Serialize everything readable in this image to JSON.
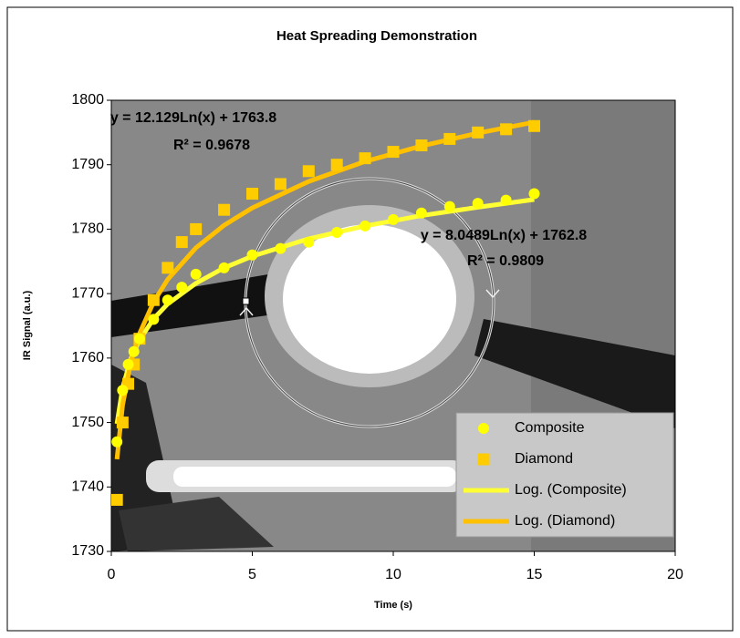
{
  "chart_data": {
    "type": "scatter",
    "title": "Heat Spreading Demonstration",
    "x_label": "Time (s)",
    "y_label": "IR Signal (a.u.)",
    "xlim": [
      0,
      20
    ],
    "xticks": [
      0,
      5,
      10,
      15,
      20
    ],
    "ylim": [
      1730,
      1800
    ],
    "yticks": [
      1730,
      1740,
      1750,
      1760,
      1770,
      1780,
      1790,
      1800
    ],
    "legend": "lower right",
    "annotations": [
      "y = 12.129Ln(x) + 1763.8",
      "R² = 0.9678",
      "y = 8.0489Ln(x) + 1762.8",
      "R² = 0.9809"
    ],
    "series": [
      {
        "name": "Composite",
        "color": "#ffff00",
        "marker": "circle",
        "x": [
          0.2,
          0.4,
          0.6,
          0.8,
          1,
          1.5,
          2,
          2.5,
          3,
          4,
          5,
          6,
          7,
          8,
          9,
          10,
          11,
          12,
          13,
          14,
          15
        ],
        "values": [
          1747,
          1755,
          1759,
          1761,
          1763,
          1766,
          1769,
          1771,
          1773,
          1774,
          1776,
          1777,
          1778,
          1779.5,
          1780.5,
          1781.5,
          1782.5,
          1783.5,
          1784,
          1784.5,
          1785.5
        ]
      },
      {
        "name": "Diamond",
        "color": "#ffcc00",
        "marker": "square",
        "x": [
          0.2,
          0.4,
          0.6,
          0.8,
          1,
          1.5,
          2,
          2.5,
          3,
          4,
          5,
          6,
          7,
          8,
          9,
          10,
          11,
          12,
          13,
          14,
          15
        ],
        "values": [
          1738,
          1750,
          1756,
          1759,
          1763,
          1769,
          1774,
          1778,
          1780,
          1783,
          1785.5,
          1787,
          1789,
          1790,
          1791,
          1792,
          1793,
          1794,
          1795,
          1795.5,
          1796
        ]
      },
      {
        "name": "Log. (Composite)",
        "color": "#ffff33",
        "marker": "line",
        "x": [
          0.2,
          0.4,
          0.7,
          1,
          1.5,
          2,
          3,
          4,
          5,
          7,
          9,
          11,
          13,
          15
        ],
        "values": [
          1749.8,
          1755.4,
          1760,
          1762.8,
          1766.1,
          1768.4,
          1771.6,
          1774,
          1775.8,
          1778.5,
          1780.5,
          1782.1,
          1783.4,
          1784.6
        ]
      },
      {
        "name": "Log. (Diamond)",
        "color": "#ffc000",
        "marker": "line",
        "x": [
          0.2,
          0.4,
          0.7,
          1,
          1.5,
          2,
          3,
          4,
          5,
          7,
          9,
          11,
          13,
          15
        ],
        "values": [
          1744.3,
          1752.7,
          1759.5,
          1763.8,
          1768.7,
          1772.2,
          1777.1,
          1780.6,
          1783.3,
          1787.4,
          1790.5,
          1792.9,
          1794.9,
          1796.6
        ]
      }
    ]
  }
}
